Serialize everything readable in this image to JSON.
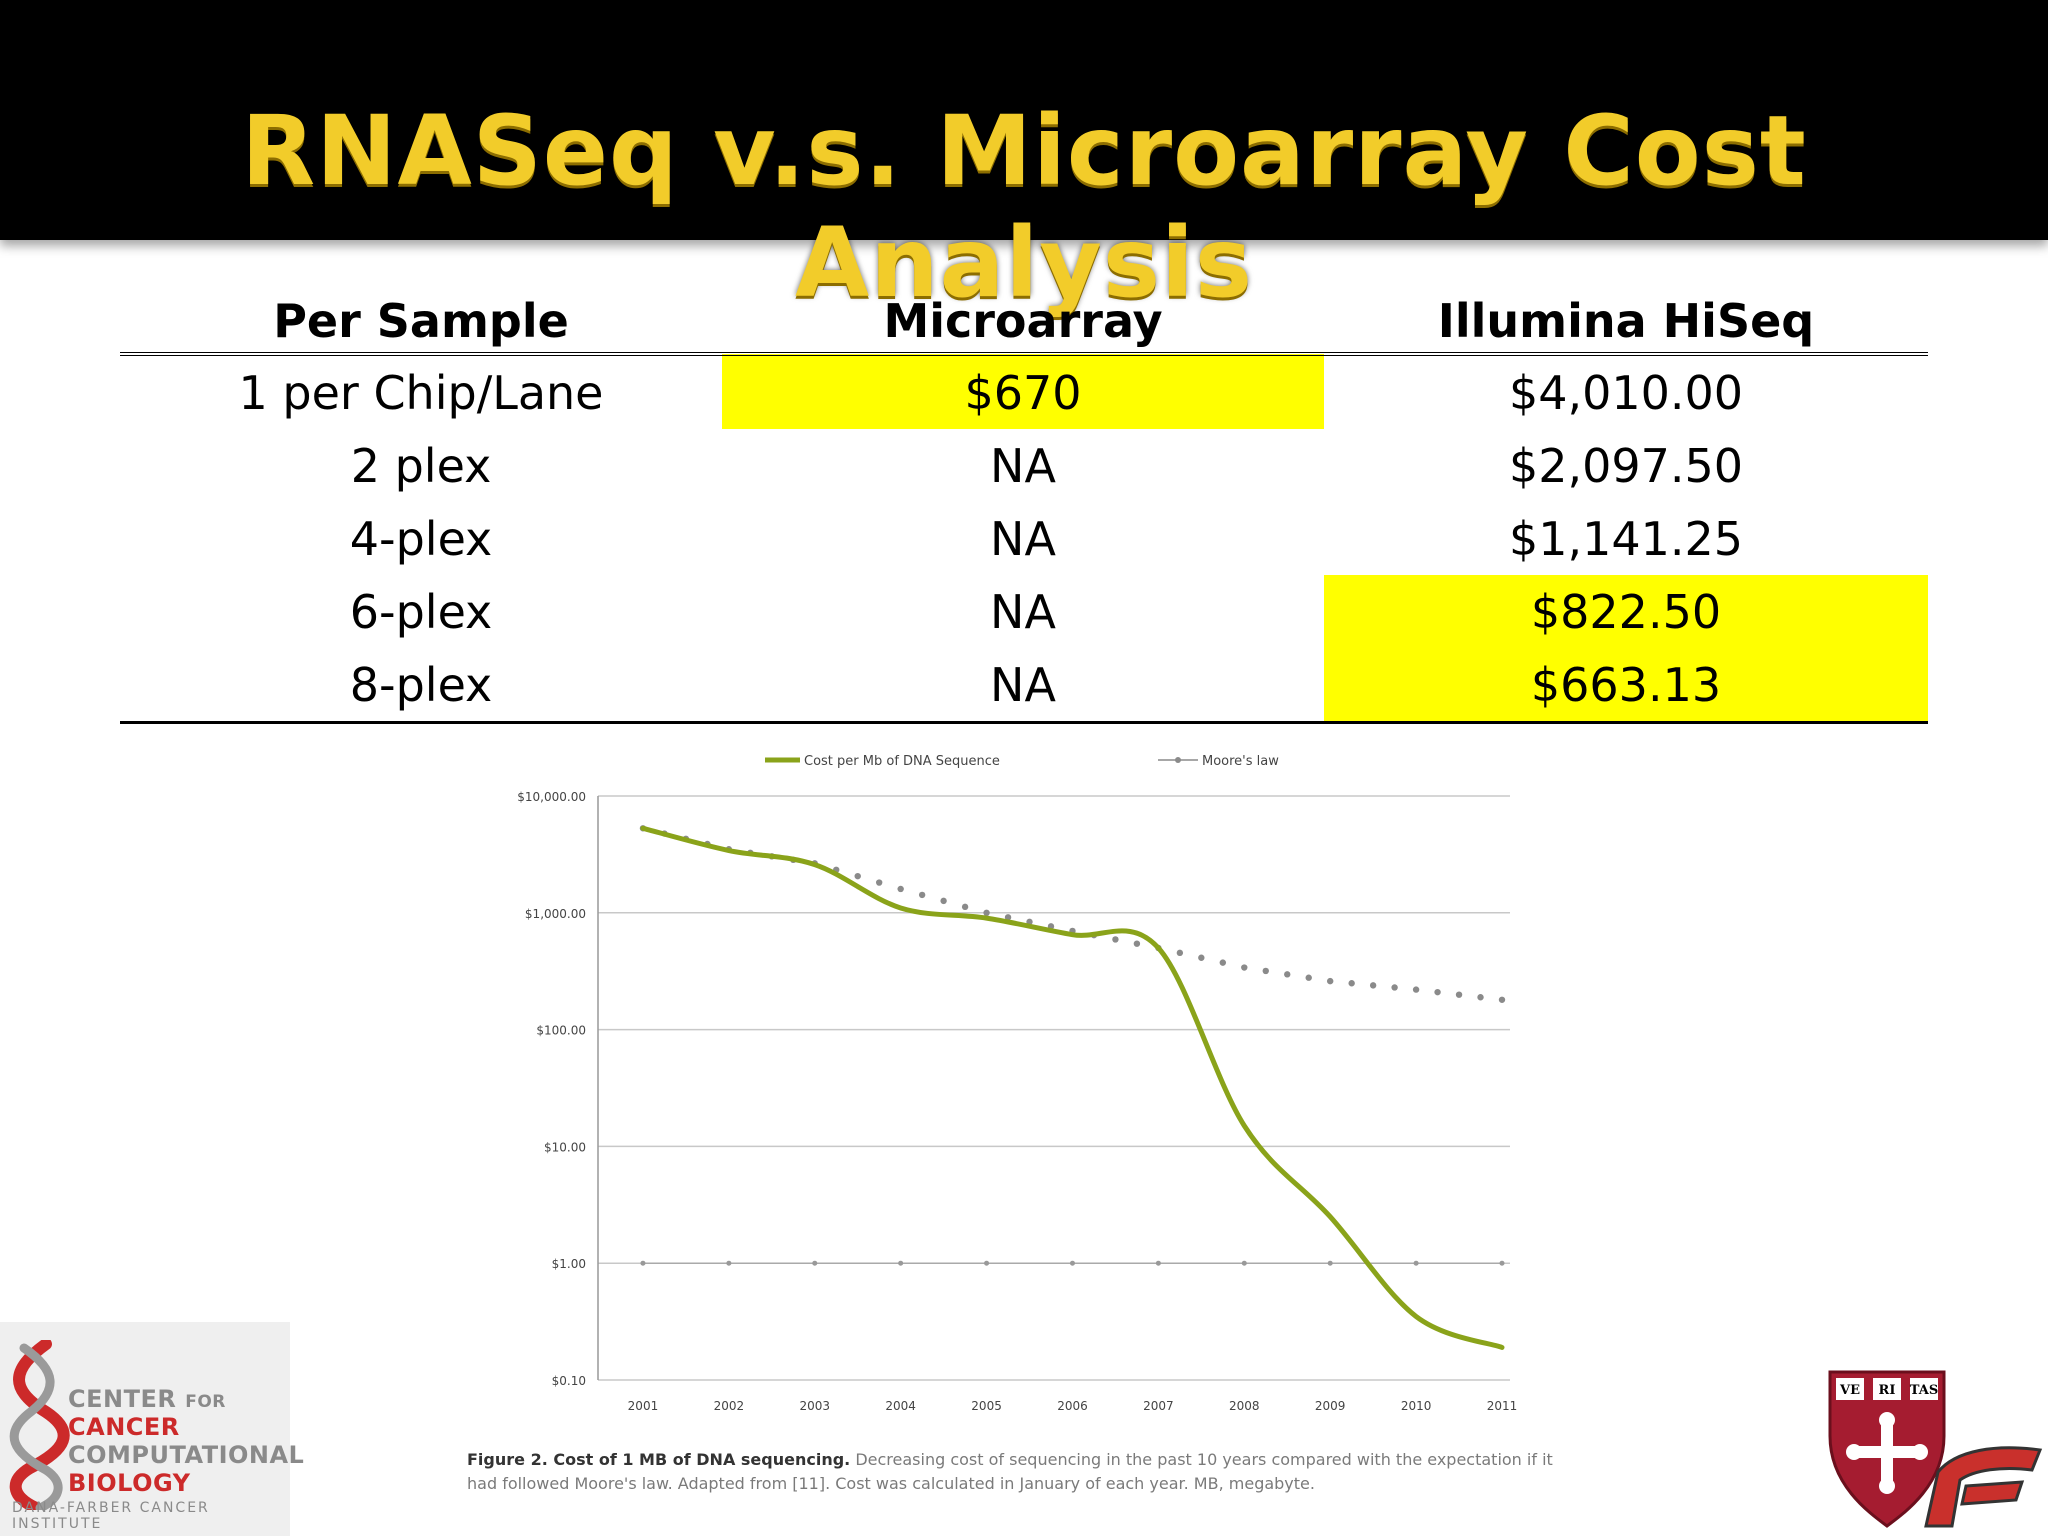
{
  "slide": {
    "title": "RNASeq v.s. Microarray Cost Analysis"
  },
  "table": {
    "headers": [
      "Per Sample",
      "Microarray",
      "Illumina HiSeq"
    ],
    "rows": [
      {
        "label": "1 per Chip/Lane",
        "microarray": "$670",
        "hiseq": "$4,010.00"
      },
      {
        "label": "2 plex",
        "microarray": "NA",
        "hiseq": "$2,097.50"
      },
      {
        "label": "4-plex",
        "microarray": "NA",
        "hiseq": "$1,141.25"
      },
      {
        "label": "6-plex",
        "microarray": "NA",
        "hiseq": "$822.50"
      },
      {
        "label": "8-plex",
        "microarray": "NA",
        "hiseq": "$663.13"
      }
    ],
    "highlight_color": "#ffff00"
  },
  "chart_data": {
    "type": "line",
    "x": [
      2001,
      2002,
      2003,
      2004,
      2005,
      2006,
      2007,
      2008,
      2009,
      2010,
      2011
    ],
    "series": [
      {
        "name": "Cost per Mb of DNA Sequence",
        "color": "#8aa31a",
        "values": [
          5292.39,
          3413.8,
          2586.2,
          1100.0,
          900.0,
          650.0,
          500.0,
          15.03,
          2.5,
          0.35,
          0.19
        ]
      },
      {
        "name": "Moore's law",
        "color": "#8a8a8a",
        "values": [
          5292.39,
          3500.0,
          2650.0,
          1600.0,
          1000.0,
          700.0,
          500.0,
          340.0,
          260.0,
          220.0,
          180.0
        ]
      },
      {
        "name": "",
        "color": "#aaaaaa",
        "values": [
          1,
          1,
          1,
          1,
          1,
          1,
          1,
          1,
          1,
          1,
          1
        ]
      }
    ],
    "y_ticks": [
      "$10,000.00",
      "$1,000.00",
      "$100.00",
      "$10.00",
      "$1.00",
      "$0.10"
    ],
    "y_scale": "log",
    "ylim": [
      0.1,
      10000
    ],
    "grid": true,
    "legend_position": "top"
  },
  "caption": {
    "bold": "Figure 2. Cost of 1 MB of DNA sequencing.",
    "text": " Decreasing cost of sequencing in the past 10 years compared with the expectation if it had followed Moore's law. Adapted from [11]. Cost was calculated in January of each year. MB, megabyte."
  },
  "logo_ccb": {
    "line1": "CENTER",
    "line1_small": "FOR",
    "line2": "CANCER",
    "line3": "COMPUTATIONAL",
    "line4": "BIOLOGY",
    "line5": "DANA-FARBER CANCER INSTITUTE"
  },
  "logo_harvard": {
    "letters": [
      "VE",
      "RI",
      "TAS"
    ]
  },
  "colors": {
    "title": "#f2cc2a",
    "accent_red": "#cc2a2a",
    "harvard_crimson": "#a51c30"
  }
}
